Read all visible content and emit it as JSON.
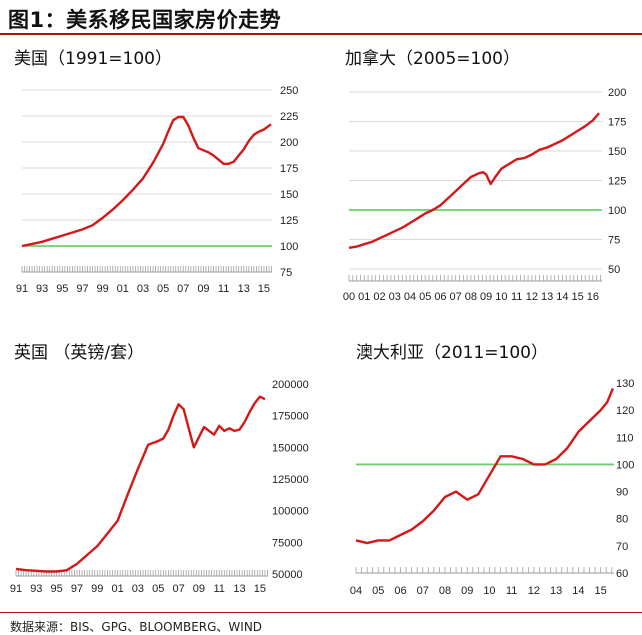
{
  "title": "图1：美系移民国家房价走势",
  "source": "数据来源：BIS、GPG、BLOOMBERG、WIND",
  "colors": {
    "series": "#d41818",
    "baseline": "#6ccf6c",
    "rule": "#b01010",
    "grid": "#d9d9d9"
  },
  "chart_data": [
    {
      "type": "line",
      "title": "美国（1991=100）",
      "x_tick_labels": [
        "91",
        "93",
        "95",
        "97",
        "99",
        "01",
        "03",
        "05",
        "07",
        "09",
        "11",
        "13",
        "15"
      ],
      "x_range": [
        1991,
        2015.8
      ],
      "ylim": [
        75,
        250
      ],
      "y_ticks": [
        75,
        100,
        125,
        150,
        175,
        200,
        225,
        250
      ],
      "grid": true,
      "reference_line": 100,
      "series": [
        {
          "x": [
            1991,
            1992,
            1993,
            1994,
            1995,
            1996,
            1997,
            1998,
            1999,
            2000,
            2001,
            2002,
            2003,
            2004,
            2005,
            2005.5,
            2006,
            2006.5,
            2007,
            2007.5,
            2008,
            2008.5,
            2009,
            2009.5,
            2010,
            2010.5,
            2011,
            2011.5,
            2012,
            2012.5,
            2013,
            2013.5,
            2014,
            2014.5,
            2015,
            2015.7
          ],
          "y": [
            100,
            102,
            104,
            107,
            110,
            113,
            116,
            120,
            127,
            135,
            144,
            154,
            165,
            180,
            198,
            210,
            221,
            224,
            224,
            216,
            204,
            194,
            192,
            190,
            187,
            183,
            179,
            179,
            181,
            187,
            193,
            201,
            207,
            210,
            212,
            217
          ]
        }
      ]
    },
    {
      "type": "line",
      "title": "加拿大（2005=100）",
      "x_tick_labels": [
        "00",
        "01",
        "02",
        "03",
        "04",
        "05",
        "06",
        "07",
        "08",
        "09",
        "10",
        "11",
        "12",
        "13",
        "14",
        "15",
        "16"
      ],
      "x_range": [
        2000,
        2016.6
      ],
      "ylim": [
        50,
        200
      ],
      "y_ticks": [
        50,
        75,
        100,
        125,
        150,
        175,
        200
      ],
      "grid": true,
      "reference_line": 100,
      "series": [
        {
          "x": [
            2000,
            2000.5,
            2001,
            2001.5,
            2002,
            2002.5,
            2003,
            2003.5,
            2004,
            2004.5,
            2005,
            2005.5,
            2006,
            2006.5,
            2007,
            2007.5,
            2008,
            2008.5,
            2008.8,
            2009,
            2009.3,
            2009.6,
            2010,
            2010.5,
            2011,
            2011.5,
            2012,
            2012.5,
            2013,
            2013.5,
            2014,
            2014.5,
            2015,
            2015.5,
            2016,
            2016.4
          ],
          "y": [
            68,
            69,
            71,
            73,
            76,
            79,
            82,
            85,
            89,
            93,
            97,
            100,
            104,
            110,
            116,
            122,
            128,
            131,
            132,
            130,
            122,
            128,
            135,
            139,
            143,
            144,
            147,
            151,
            153,
            156,
            159,
            163,
            167,
            171,
            176,
            182
          ]
        }
      ]
    },
    {
      "type": "line",
      "title": "英国 （英镑/套）",
      "x_tick_labels": [
        "91",
        "93",
        "95",
        "97",
        "99",
        "01",
        "03",
        "05",
        "07",
        "09",
        "11",
        "13",
        "15"
      ],
      "x_range": [
        1991,
        2015.8
      ],
      "ylim": [
        50000,
        200000
      ],
      "y_ticks": [
        50000,
        75000,
        100000,
        125000,
        150000,
        175000,
        200000
      ],
      "grid": false,
      "series": [
        {
          "x": [
            1991,
            1992,
            1993,
            1994,
            1995,
            1996,
            1997,
            1998,
            1999,
            2000,
            2001,
            2002,
            2003,
            2004,
            2005,
            2005.5,
            2006,
            2006.5,
            2007,
            2007.5,
            2008,
            2008.5,
            2009,
            2009.5,
            2010,
            2010.5,
            2011,
            2011.5,
            2012,
            2012.5,
            2013,
            2013.5,
            2014,
            2014.5,
            2015,
            2015.5
          ],
          "y": [
            54000,
            53000,
            52500,
            52000,
            52000,
            53000,
            58000,
            65000,
            72000,
            82000,
            92000,
            113000,
            133000,
            152000,
            155000,
            157000,
            164000,
            175000,
            184000,
            180000,
            165000,
            150000,
            158000,
            166000,
            163000,
            160000,
            167000,
            163000,
            165000,
            163000,
            164000,
            170000,
            178000,
            185000,
            190000,
            188000
          ]
        }
      ]
    },
    {
      "type": "line",
      "title": "澳大利亚（2011=100）",
      "x_tick_labels": [
        "04",
        "05",
        "06",
        "07",
        "08",
        "09",
        "10",
        "11",
        "12",
        "13",
        "14",
        "15"
      ],
      "x_range": [
        2004,
        2015.6
      ],
      "ylim": [
        60,
        130
      ],
      "y_ticks": [
        60,
        70,
        80,
        90,
        100,
        110,
        120,
        130
      ],
      "grid": false,
      "reference_line": 100,
      "series": [
        {
          "x": [
            2004,
            2004.5,
            2005,
            2005.5,
            2006,
            2006.5,
            2007,
            2007.5,
            2008,
            2008.5,
            2009,
            2009.5,
            2010,
            2010.5,
            2011,
            2011.5,
            2012,
            2012.5,
            2013,
            2013.5,
            2014,
            2014.5,
            2015,
            2015.3,
            2015.55
          ],
          "y": [
            72,
            71,
            72,
            72,
            74,
            76,
            79,
            83,
            88,
            90,
            87,
            89,
            96,
            103,
            103,
            102,
            100,
            100,
            102,
            106,
            112,
            116,
            120,
            123,
            128
          ]
        }
      ]
    }
  ]
}
